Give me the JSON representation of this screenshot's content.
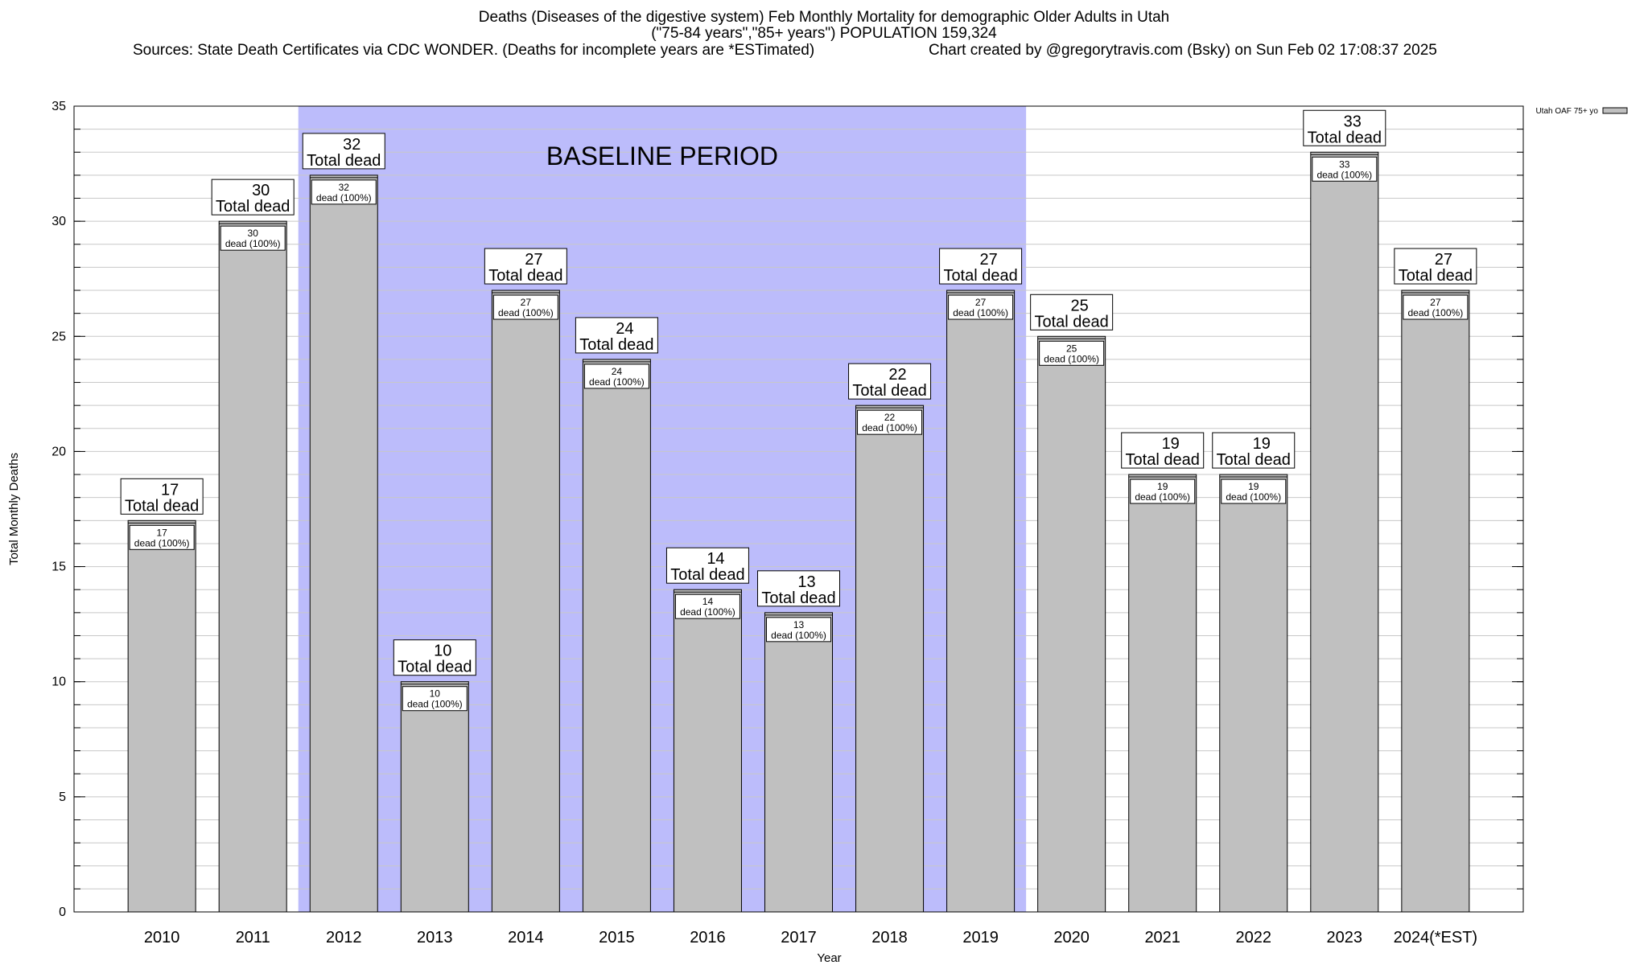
{
  "header": {
    "title": "Deaths (Diseases of the digestive system) Feb Monthly Mortality for demographic Older Adults in Utah",
    "subtitle": "(\"75-84 years\",\"85+ years\") POPULATION 159,324",
    "sources": "Sources: State Death Certificates via CDC WONDER. (Deaths for incomplete years are *ESTimated)",
    "credit": "Chart created by @gregorytravis.com (Bsky) on Sun Feb 02 17:08:37 2025"
  },
  "chart_data": {
    "type": "bar",
    "categories": [
      "2010",
      "2011",
      "2012",
      "2013",
      "2014",
      "2015",
      "2016",
      "2017",
      "2018",
      "2019",
      "2020",
      "2021",
      "2022",
      "2023",
      "2024(*EST)"
    ],
    "series": [
      {
        "name": "Utah OAF 75+ yo",
        "values": [
          17,
          30,
          32,
          10,
          27,
          24,
          14,
          13,
          22,
          27,
          25,
          19,
          19,
          33,
          27
        ]
      }
    ],
    "total_label_suffix": "Total dead",
    "bar_label_suffix": "dead (100%)",
    "xlabel": "Year",
    "ylabel": "Total Monthly Deaths",
    "ylim": [
      0,
      35
    ],
    "y_major_ticks": [
      0,
      5,
      10,
      15,
      20,
      25,
      30,
      35
    ],
    "y_minor_step": 1,
    "grid": true,
    "legend_position": "top-right",
    "baseline": {
      "label": "BASELINE PERIOD",
      "start": "2012",
      "end": "2019",
      "color": "#bcbcfb"
    },
    "colors": {
      "bar_fill": "#c0c0c0",
      "bar_stroke": "#000000",
      "grid": "#c8c8c8"
    }
  }
}
